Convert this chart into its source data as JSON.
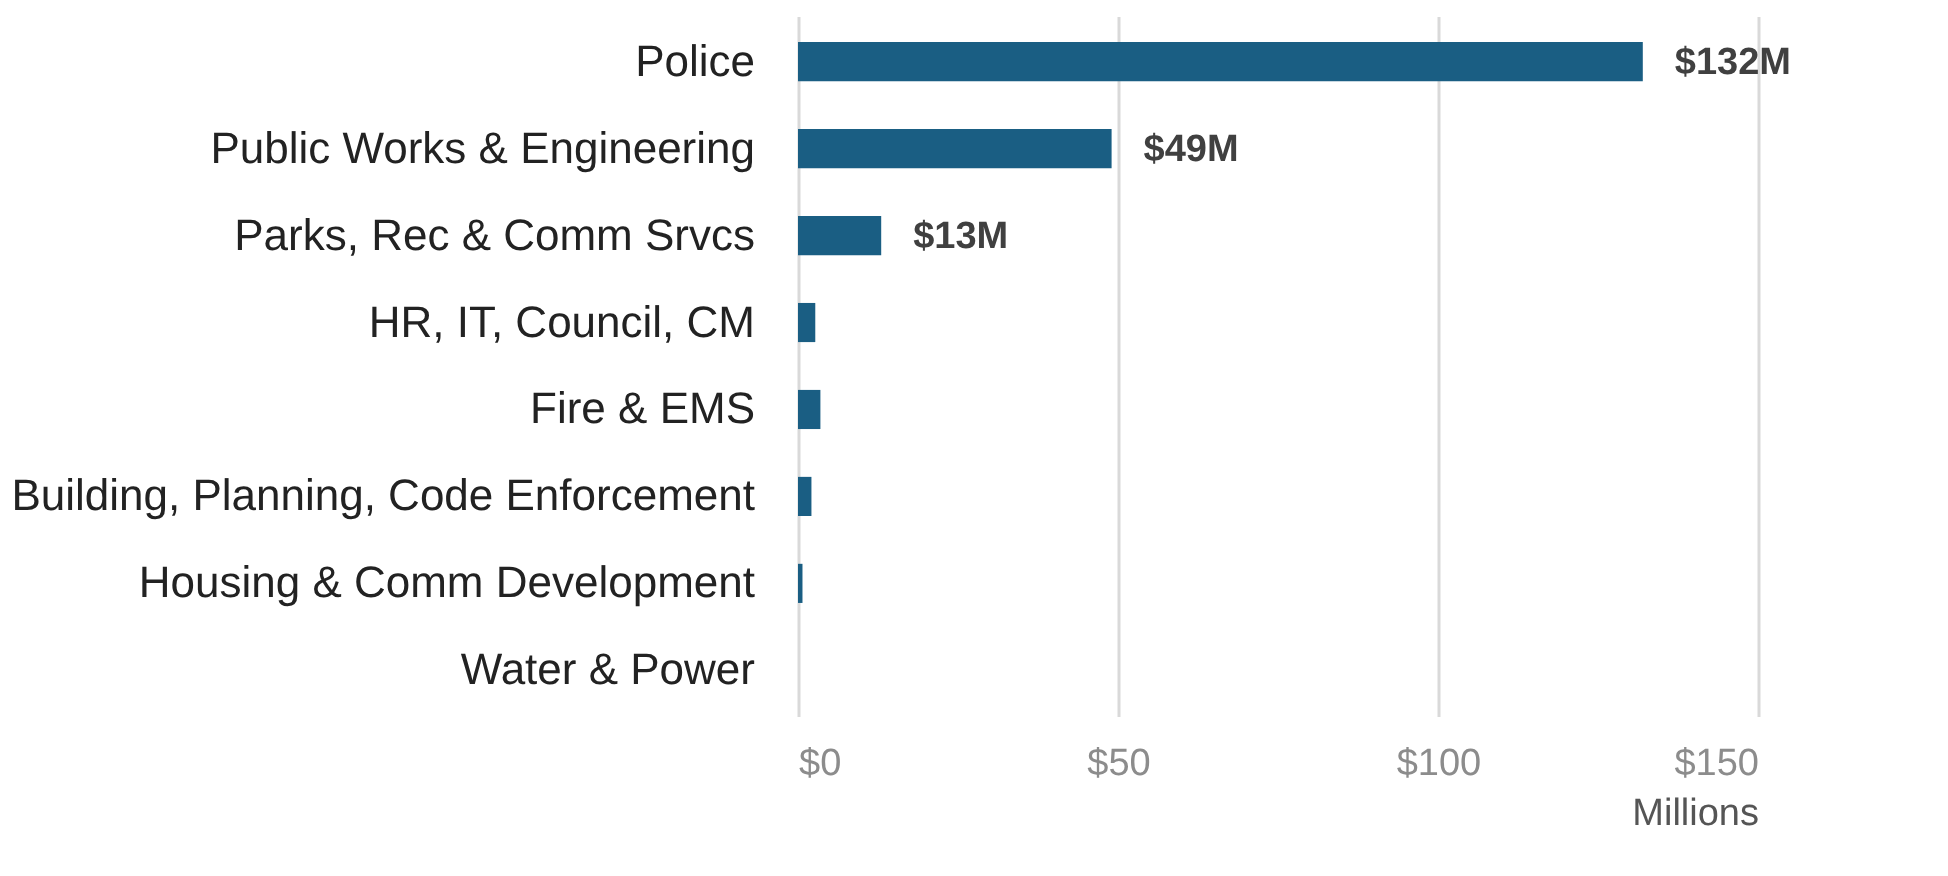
{
  "chart_data": {
    "type": "bar",
    "orientation": "horizontal",
    "xlabel": "Millions",
    "categories": [
      "Police",
      "Public Works & Engineering",
      "Parks, Rec & Comm Srvcs",
      "HR, IT, Council, CM",
      "Fire & EMS",
      "Building, Planning, Code Enforcement",
      "Housing & Comm Development",
      "Water & Power"
    ],
    "values": [
      132,
      49,
      13,
      2.7,
      3.5,
      2.1,
      0.7,
      0
    ],
    "value_labels": [
      "$132M",
      "$49M",
      "$13M",
      null,
      null,
      null,
      null,
      null
    ],
    "color": "#1a5e83",
    "xlim": [
      0,
      150
    ],
    "xticks": [
      {
        "value": 0,
        "label": "$0"
      },
      {
        "value": 50,
        "label": "$50"
      },
      {
        "value": 100,
        "label": "$100"
      },
      {
        "value": 150,
        "label": "$150"
      }
    ],
    "grid": "x"
  }
}
